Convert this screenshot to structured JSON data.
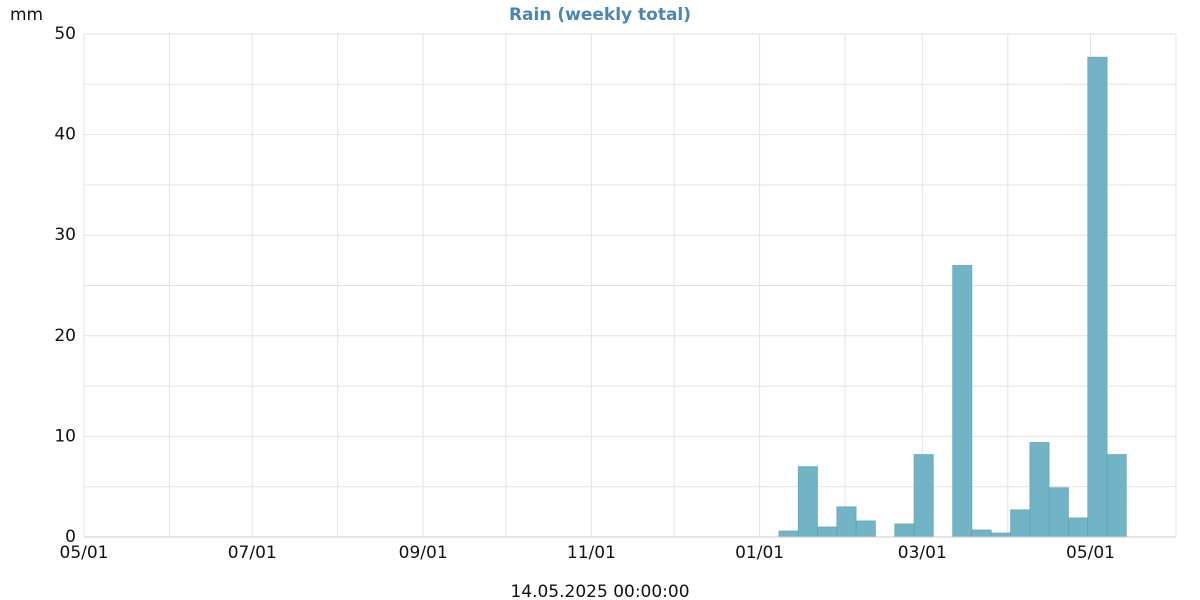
{
  "chart_data": {
    "type": "histogram",
    "title": "Rain (weekly total)",
    "y_label": "mm",
    "x_label": "14.05.2025 00:00:00",
    "bins": [
      252,
      259,
      266,
      273,
      280,
      287,
      294,
      301,
      308,
      315,
      322,
      329,
      336,
      343,
      350,
      357,
      364,
      371,
      378
    ],
    "values": [
      0.6,
      7,
      1,
      3,
      1.6,
      0,
      1.3,
      8.2,
      0,
      27,
      0.7,
      0.4,
      2.7,
      9.4,
      4.9,
      1.9,
      47.7,
      8.2
    ],
    "color": "#72b3c5",
    "xlim": [
      0,
      396
    ],
    "xticks": [
      {
        "value": 0,
        "label": "05/01"
      },
      {
        "value": 61,
        "label": "07/01"
      },
      {
        "value": 123,
        "label": "09/01"
      },
      {
        "value": 184,
        "label": "11/01"
      },
      {
        "value": 245,
        "label": "01/01"
      },
      {
        "value": 304,
        "label": "03/01"
      },
      {
        "value": 365,
        "label": "05/01"
      }
    ],
    "xminor": [
      31,
      92,
      153,
      214,
      276,
      335,
      396
    ],
    "ylim": [
      0,
      50
    ],
    "yticks": [
      0,
      10,
      20,
      30,
      40,
      50
    ],
    "yminor": [
      5,
      15,
      25,
      35,
      45
    ],
    "grid": true
  }
}
